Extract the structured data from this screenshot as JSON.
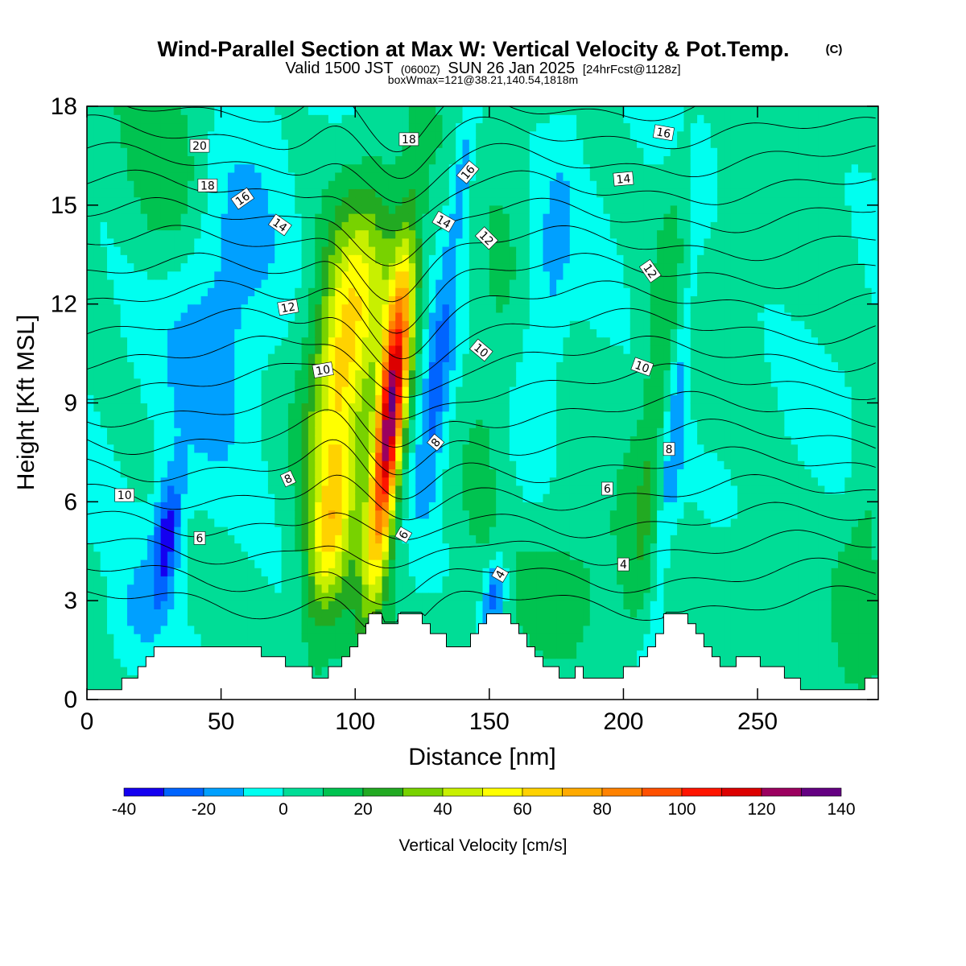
{
  "chart_data": {
    "type": "heatmap",
    "title": "Wind-Parallel Section at Max W: Vertical Velocity & Pot.Temp.",
    "title_mark": "(C)",
    "subtitle": {
      "valid": "Valid 1500 JST",
      "utc": "(0600Z)",
      "date": "SUN 26 Jan 2025",
      "forecast": "[24hrFcst@1128z]"
    },
    "box_info": "boxWmax=121@38.21,140.54,1818m",
    "xlabel": "Distance [nm]",
    "ylabel": "Height [Kft MSL]",
    "xlim": [
      0,
      295
    ],
    "ylim": [
      0,
      18
    ],
    "x_ticks": [
      0,
      50,
      100,
      150,
      200,
      250
    ],
    "y_ticks": [
      0,
      3,
      6,
      9,
      12,
      15,
      18
    ],
    "colorbar": {
      "label": "Vertical Velocity [cm/s]",
      "levels": [
        -40,
        -30,
        -20,
        -10,
        0,
        10,
        20,
        30,
        40,
        50,
        60,
        70,
        80,
        90,
        100,
        110,
        120,
        130,
        140
      ],
      "tick_labels": [
        -40,
        -20,
        0,
        20,
        40,
        60,
        80,
        100,
        120,
        140
      ],
      "colors": [
        "#1400f0",
        "#0064ff",
        "#00a0ff",
        "#00fff0",
        "#00dd96",
        "#00c350",
        "#22aa22",
        "#78d200",
        "#c8f000",
        "#ffff00",
        "#ffd200",
        "#ffaa00",
        "#ff8200",
        "#ff5000",
        "#ff1400",
        "#dc0000",
        "#9b005f",
        "#640082"
      ]
    },
    "vertical_velocity_features": [
      {
        "x": 113,
        "z": 8.5,
        "sx": 3.5,
        "sz": 3.2,
        "w": 118
      },
      {
        "x": 94,
        "z": 10,
        "sx": 7,
        "sz": 2.5,
        "w": 42
      },
      {
        "x": 90,
        "z": 5,
        "sx": 5,
        "sz": 1.8,
        "w": 42
      },
      {
        "x": 100,
        "z": 7,
        "sx": 12,
        "sz": 5.5,
        "w": 22
      },
      {
        "x": 102,
        "z": 13,
        "sx": 10,
        "sz": 2,
        "w": 18
      },
      {
        "x": 30,
        "z": 5,
        "sx": 3.5,
        "sz": 1.4,
        "w": -38
      },
      {
        "x": 18,
        "z": 2.5,
        "sx": 8,
        "sz": 1.5,
        "w": -14
      },
      {
        "x": 130,
        "z": 9.5,
        "sx": 4,
        "sz": 2.5,
        "w": -30
      },
      {
        "x": 152,
        "z": 3.2,
        "sx": 3,
        "sz": 0.9,
        "w": -32
      },
      {
        "x": 140,
        "z": 16,
        "sx": 3,
        "sz": 1.6,
        "w": -22
      },
      {
        "x": 50,
        "z": 11,
        "sx": 15,
        "sz": 4,
        "w": -18
      },
      {
        "x": 32,
        "z": 16,
        "sx": 12,
        "sz": 2.5,
        "w": 16
      },
      {
        "x": 212,
        "z": 9,
        "sx": 4,
        "sz": 5,
        "w": 16
      },
      {
        "x": 219,
        "z": 8,
        "sx": 3,
        "sz": 4,
        "w": -20
      },
      {
        "x": 172,
        "z": 12,
        "sx": 5,
        "sz": 4,
        "w": -12
      },
      {
        "x": 150,
        "z": 10,
        "sx": 7,
        "sz": 4,
        "w": 12
      },
      {
        "x": 185,
        "z": 3.5,
        "sx": 20,
        "sz": 1.6,
        "w": 10
      },
      {
        "x": 245,
        "z": 3.5,
        "sx": 16,
        "sz": 1.5,
        "w": 10
      },
      {
        "x": 290,
        "z": 5,
        "sx": 6,
        "sz": 3,
        "w": 12
      }
    ],
    "theta_contours": {
      "levels": [
        3,
        4,
        5,
        6,
        7,
        8,
        9,
        10,
        11,
        12,
        13,
        14,
        15,
        16,
        17,
        18,
        19,
        20,
        21
      ],
      "labels": [
        {
          "x": 14,
          "z": 6.2,
          "text": "10",
          "angle": 0
        },
        {
          "x": 42,
          "z": 4.9,
          "text": "6",
          "angle": 0
        },
        {
          "x": 75,
          "z": 6.7,
          "text": "8",
          "angle": -25
        },
        {
          "x": 88,
          "z": 10.0,
          "text": "10",
          "angle": -10
        },
        {
          "x": 75,
          "z": 11.9,
          "text": "12",
          "angle": -10
        },
        {
          "x": 72,
          "z": 14.4,
          "text": "14",
          "angle": 35
        },
        {
          "x": 58,
          "z": 15.2,
          "text": "16",
          "angle": -35
        },
        {
          "x": 45,
          "z": 15.6,
          "text": "18",
          "angle": 0
        },
        {
          "x": 42,
          "z": 16.8,
          "text": "20",
          "angle": 0
        },
        {
          "x": 120,
          "z": 17.0,
          "text": "18",
          "angle": 0
        },
        {
          "x": 142,
          "z": 16.0,
          "text": "16",
          "angle": -50
        },
        {
          "x": 133,
          "z": 14.5,
          "text": "14",
          "angle": 30
        },
        {
          "x": 149,
          "z": 14.0,
          "text": "12",
          "angle": 45
        },
        {
          "x": 147,
          "z": 10.6,
          "text": "10",
          "angle": 40
        },
        {
          "x": 130,
          "z": 7.8,
          "text": "8",
          "angle": -50
        },
        {
          "x": 118,
          "z": 5.0,
          "text": "6",
          "angle": -60
        },
        {
          "x": 154,
          "z": 3.8,
          "text": "4",
          "angle": -60
        },
        {
          "x": 215,
          "z": 17.2,
          "text": "16",
          "angle": 10
        },
        {
          "x": 200,
          "z": 15.8,
          "text": "14",
          "angle": -5
        },
        {
          "x": 210,
          "z": 13.0,
          "text": "12",
          "angle": 55
        },
        {
          "x": 207,
          "z": 10.1,
          "text": "10",
          "angle": 20
        },
        {
          "x": 217,
          "z": 7.6,
          "text": "8",
          "angle": 0
        },
        {
          "x": 194,
          "z": 6.4,
          "text": "6",
          "angle": 0
        },
        {
          "x": 200,
          "z": 4.1,
          "text": "4",
          "angle": 0
        }
      ]
    },
    "terrain": [
      [
        0,
        0.3
      ],
      [
        13,
        0.3
      ],
      [
        13,
        0.65
      ],
      [
        19,
        0.65
      ],
      [
        19,
        1.0
      ],
      [
        22,
        1.0
      ],
      [
        22,
        1.3
      ],
      [
        25,
        1.3
      ],
      [
        25,
        1.6
      ],
      [
        65,
        1.6
      ],
      [
        65,
        1.3
      ],
      [
        74,
        1.3
      ],
      [
        74,
        1.0
      ],
      [
        84,
        1.0
      ],
      [
        84,
        0.65
      ],
      [
        90,
        0.65
      ],
      [
        90,
        1.0
      ],
      [
        95,
        1.0
      ],
      [
        95,
        1.3
      ],
      [
        98,
        1.3
      ],
      [
        98,
        1.6
      ],
      [
        101,
        1.6
      ],
      [
        101,
        2.0
      ],
      [
        104,
        2.0
      ],
      [
        104,
        2.3
      ],
      [
        105,
        2.3
      ],
      [
        105,
        2.6
      ],
      [
        110,
        2.6
      ],
      [
        110,
        2.3
      ],
      [
        116,
        2.3
      ],
      [
        116,
        2.6
      ],
      [
        125,
        2.6
      ],
      [
        125,
        2.3
      ],
      [
        128,
        2.3
      ],
      [
        128,
        2.0
      ],
      [
        134,
        2.0
      ],
      [
        134,
        1.6
      ],
      [
        143,
        1.6
      ],
      [
        143,
        2.0
      ],
      [
        146,
        2.0
      ],
      [
        146,
        2.3
      ],
      [
        149,
        2.3
      ],
      [
        149,
        2.6
      ],
      [
        158,
        2.6
      ],
      [
        158,
        2.3
      ],
      [
        161,
        2.3
      ],
      [
        161,
        2.0
      ],
      [
        164,
        2.0
      ],
      [
        164,
        1.6
      ],
      [
        167,
        1.6
      ],
      [
        167,
        1.3
      ],
      [
        170,
        1.3
      ],
      [
        170,
        1.0
      ],
      [
        176,
        1.0
      ],
      [
        176,
        0.65
      ],
      [
        182,
        0.65
      ],
      [
        182,
        1.0
      ],
      [
        185,
        1.0
      ],
      [
        185,
        0.65
      ],
      [
        200,
        0.65
      ],
      [
        200,
        1.0
      ],
      [
        206,
        1.0
      ],
      [
        206,
        1.3
      ],
      [
        209,
        1.3
      ],
      [
        209,
        1.6
      ],
      [
        212,
        1.6
      ],
      [
        212,
        2.0
      ],
      [
        215,
        2.0
      ],
      [
        215,
        2.3
      ],
      [
        215,
        2.6
      ],
      [
        224,
        2.6
      ],
      [
        224,
        2.3
      ],
      [
        227,
        2.3
      ],
      [
        227,
        2.0
      ],
      [
        230,
        2.0
      ],
      [
        230,
        1.6
      ],
      [
        233,
        1.6
      ],
      [
        233,
        1.3
      ],
      [
        236,
        1.3
      ],
      [
        236,
        1.0
      ],
      [
        242,
        1.0
      ],
      [
        242,
        1.3
      ],
      [
        251,
        1.3
      ],
      [
        251,
        1.0
      ],
      [
        260,
        1.0
      ],
      [
        260,
        0.65
      ],
      [
        266,
        0.65
      ],
      [
        266,
        0.3
      ],
      [
        290,
        0.3
      ],
      [
        290,
        0.65
      ],
      [
        295,
        0.65
      ],
      [
        295,
        0
      ]
    ]
  }
}
